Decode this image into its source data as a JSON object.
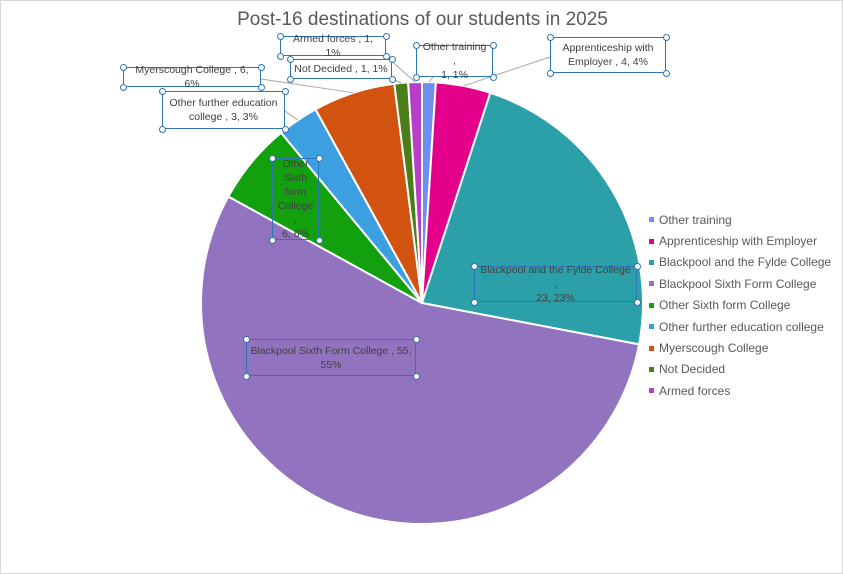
{
  "chart_data": {
    "type": "pie",
    "title": "Post-16 destinations of our students in 2025",
    "slices": [
      {
        "name": "Other training",
        "value": 1,
        "percent": "1%",
        "color": "#6f8ff0"
      },
      {
        "name": "Apprenticeship with Employer",
        "value": 4,
        "percent": "4%",
        "color": "#e5008c"
      },
      {
        "name": "Blackpool and the Fylde College",
        "value": 23,
        "percent": "23%",
        "color": "#2ca0a8"
      },
      {
        "name": "Blackpool Sixth Form College",
        "value": 55,
        "percent": "55%",
        "color": "#9173c0"
      },
      {
        "name": "Other Sixth form College",
        "value": 6,
        "percent": "6%",
        "color": "#12a00f"
      },
      {
        "name": "Other further education college",
        "value": 3,
        "percent": "3%",
        "color": "#3b9fe0"
      },
      {
        "name": "Myerscough College",
        "value": 6,
        "percent": "6%",
        "color": "#d2520f"
      },
      {
        "name": "Not Decided",
        "value": 1,
        "percent": "1%",
        "color": "#4b7e1b"
      },
      {
        "name": "Armed forces",
        "value": 1,
        "percent": "1%",
        "color": "#b63fc6"
      }
    ],
    "labels": [
      {
        "line1": "Other training ,",
        "line2": "1, 1%"
      },
      {
        "line1": "Apprenticeship with",
        "line2": "Employer , 4, 4%"
      },
      {
        "line1": "Blackpool and the Fylde College ,",
        "line2": "23, 23%"
      },
      {
        "line1": "Blackpool Sixth Form College , 55,",
        "line2": "55%"
      },
      {
        "line1": "Other Sixth form College ,",
        "line2": "6, 6%"
      },
      {
        "line1": "Other further education",
        "line2": "college , 3, 3%"
      },
      {
        "line1": "Myerscough College , 6, 6%",
        "line2": ""
      },
      {
        "line1": "Not Decided , 1, 1%",
        "line2": ""
      },
      {
        "line1": "Armed forces , 1, 1%",
        "line2": ""
      }
    ],
    "legend_position": "right",
    "start_angle_deg": 0,
    "direction": "clockwise"
  }
}
